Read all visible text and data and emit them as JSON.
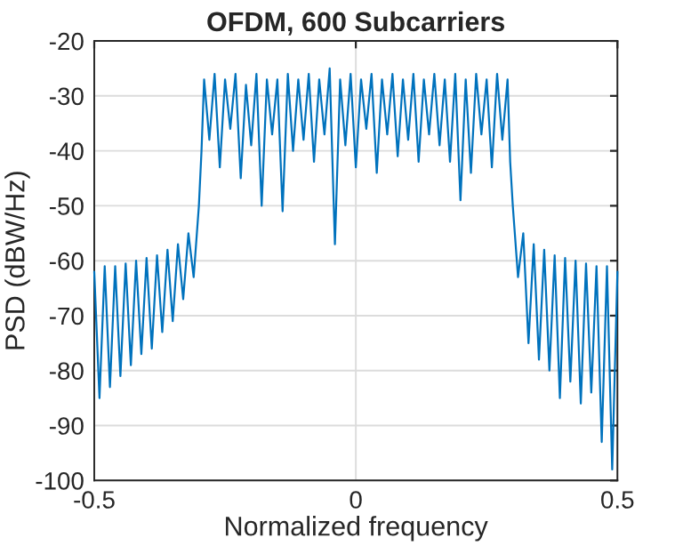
{
  "chart_data": {
    "type": "line",
    "title": "OFDM, 600 Subcarriers",
    "xlabel": "Normalized frequency",
    "ylabel": "PSD (dBW/Hz)",
    "x": [
      -0.5,
      -0.49,
      -0.48,
      -0.47,
      -0.46,
      -0.45,
      -0.44,
      -0.43,
      -0.42,
      -0.41,
      -0.4,
      -0.39,
      -0.38,
      -0.37,
      -0.36,
      -0.35,
      -0.34,
      -0.33,
      -0.32,
      -0.31,
      -0.3,
      -0.295,
      -0.29,
      -0.28,
      -0.27,
      -0.26,
      -0.25,
      -0.24,
      -0.23,
      -0.22,
      -0.21,
      -0.2,
      -0.19,
      -0.18,
      -0.17,
      -0.16,
      -0.15,
      -0.14,
      -0.13,
      -0.12,
      -0.11,
      -0.1,
      -0.09,
      -0.08,
      -0.07,
      -0.06,
      -0.05,
      -0.04,
      -0.03,
      -0.02,
      -0.01,
      0.0,
      0.01,
      0.02,
      0.03,
      0.04,
      0.05,
      0.06,
      0.07,
      0.08,
      0.09,
      0.1,
      0.11,
      0.12,
      0.13,
      0.14,
      0.15,
      0.16,
      0.17,
      0.18,
      0.19,
      0.2,
      0.21,
      0.22,
      0.23,
      0.24,
      0.25,
      0.26,
      0.27,
      0.28,
      0.29,
      0.295,
      0.3,
      0.31,
      0.32,
      0.33,
      0.34,
      0.35,
      0.36,
      0.37,
      0.38,
      0.39,
      0.4,
      0.41,
      0.42,
      0.43,
      0.44,
      0.45,
      0.46,
      0.47,
      0.48,
      0.49,
      0.5
    ],
    "series": [
      {
        "color": "#0072bd",
        "values": [
          -62,
          -85,
          -61,
          -83,
          -61,
          -81,
          -60.5,
          -79,
          -60,
          -77,
          -59.5,
          -76,
          -59,
          -73,
          -58,
          -71,
          -57,
          -67,
          -55,
          -63,
          -50,
          -40,
          -27,
          -38,
          -26,
          -43,
          -27,
          -36,
          -26,
          -45,
          -28,
          -39,
          -26,
          -50,
          -27,
          -37,
          -27,
          -51,
          -26,
          -40,
          -27,
          -38,
          -26,
          -42,
          -27,
          -37,
          -25,
          -57,
          -27,
          -39,
          -26,
          -43,
          -27,
          -36,
          -26,
          -44,
          -27,
          -37,
          -26,
          -41,
          -27,
          -38,
          -26,
          -42,
          -27,
          -37,
          -26,
          -39,
          -27,
          -42,
          -26,
          -49,
          -27,
          -44,
          -26,
          -37,
          -27,
          -43,
          -26,
          -38,
          -27,
          -42,
          -50,
          -63,
          -55,
          -75,
          -57,
          -78,
          -58,
          -80,
          -59,
          -85,
          -59.5,
          -82,
          -60,
          -86,
          -60.5,
          -84,
          -61,
          -93,
          -61,
          -98,
          -62
        ]
      }
    ],
    "xlim": [
      -0.5,
      0.5
    ],
    "xticks": [
      -0.5,
      0,
      0.5
    ],
    "ylim": [
      -100,
      -20
    ],
    "yticks": [
      -100,
      -90,
      -80,
      -70,
      -60,
      -50,
      -40,
      -30,
      -20
    ],
    "grid": true,
    "line_style": "solid"
  }
}
